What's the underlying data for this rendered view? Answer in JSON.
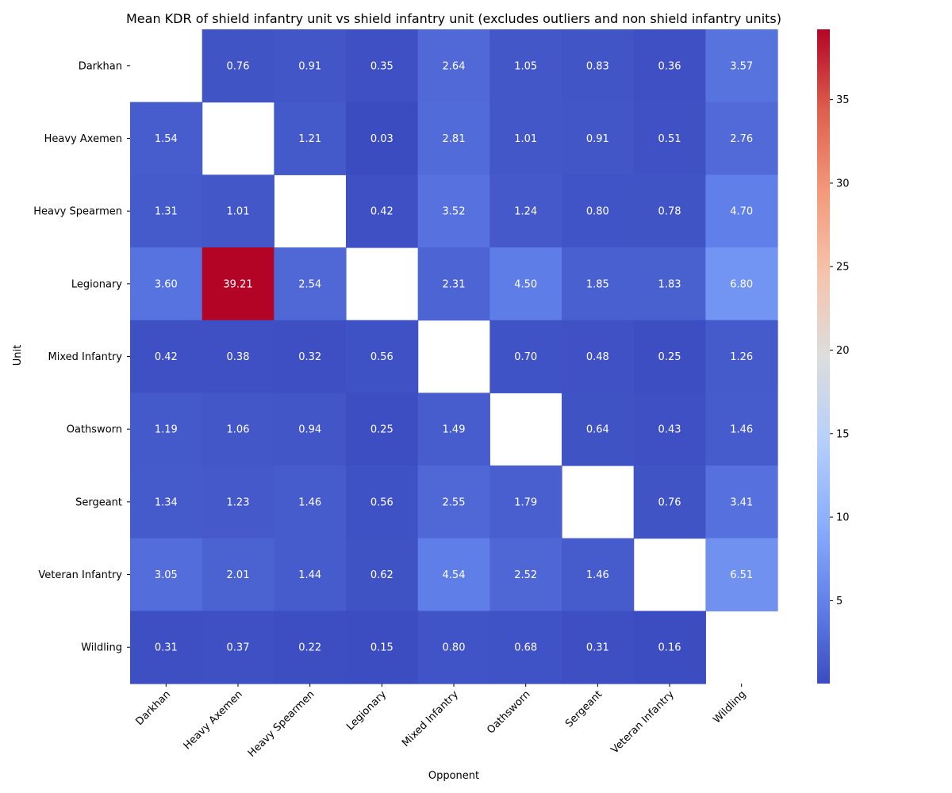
{
  "chart_data": {
    "type": "heatmap",
    "title": "Mean KDR of shield infantry unit vs shield infantry unit (excludes outliers and non shield infantry units)",
    "xlabel": "Opponent",
    "ylabel": "Unit",
    "x_categories": [
      "Darkhan",
      "Heavy Axemen",
      "Heavy Spearmen",
      "Legionary",
      "Mixed Infantry",
      "Oathsworn",
      "Sergeant",
      "Veteran Infantry",
      "Wildling"
    ],
    "y_categories": [
      "Darkhan",
      "Heavy Axemen",
      "Heavy Spearmen",
      "Legionary",
      "Mixed Infantry",
      "Oathsworn",
      "Sergeant",
      "Veteran Infantry",
      "Wildling"
    ],
    "values": [
      [
        null,
        0.76,
        0.91,
        0.35,
        2.64,
        1.05,
        0.83,
        0.36,
        3.57
      ],
      [
        1.54,
        null,
        1.21,
        0.03,
        2.81,
        1.01,
        0.91,
        0.51,
        2.76
      ],
      [
        1.31,
        1.01,
        null,
        0.42,
        3.52,
        1.24,
        0.8,
        0.78,
        4.7
      ],
      [
        3.6,
        39.21,
        2.54,
        null,
        2.31,
        4.5,
        1.85,
        1.83,
        6.8
      ],
      [
        0.42,
        0.38,
        0.32,
        0.56,
        null,
        0.7,
        0.48,
        0.25,
        1.26
      ],
      [
        1.19,
        1.06,
        0.94,
        0.25,
        1.49,
        null,
        0.64,
        0.43,
        1.46
      ],
      [
        1.34,
        1.23,
        1.46,
        0.56,
        2.55,
        1.79,
        null,
        0.76,
        3.41
      ],
      [
        3.05,
        2.01,
        1.44,
        0.62,
        4.54,
        2.52,
        1.46,
        null,
        6.51
      ],
      [
        0.31,
        0.37,
        0.22,
        0.15,
        0.8,
        0.68,
        0.31,
        0.16,
        null
      ]
    ],
    "value_format": "2 decimals",
    "colormap": "coolwarm",
    "colorbar": {
      "range": [
        0.03,
        39.21
      ],
      "ticks": [
        5,
        10,
        15,
        20,
        25,
        30,
        35
      ]
    },
    "grid": false,
    "legend": "colorbar-right"
  }
}
